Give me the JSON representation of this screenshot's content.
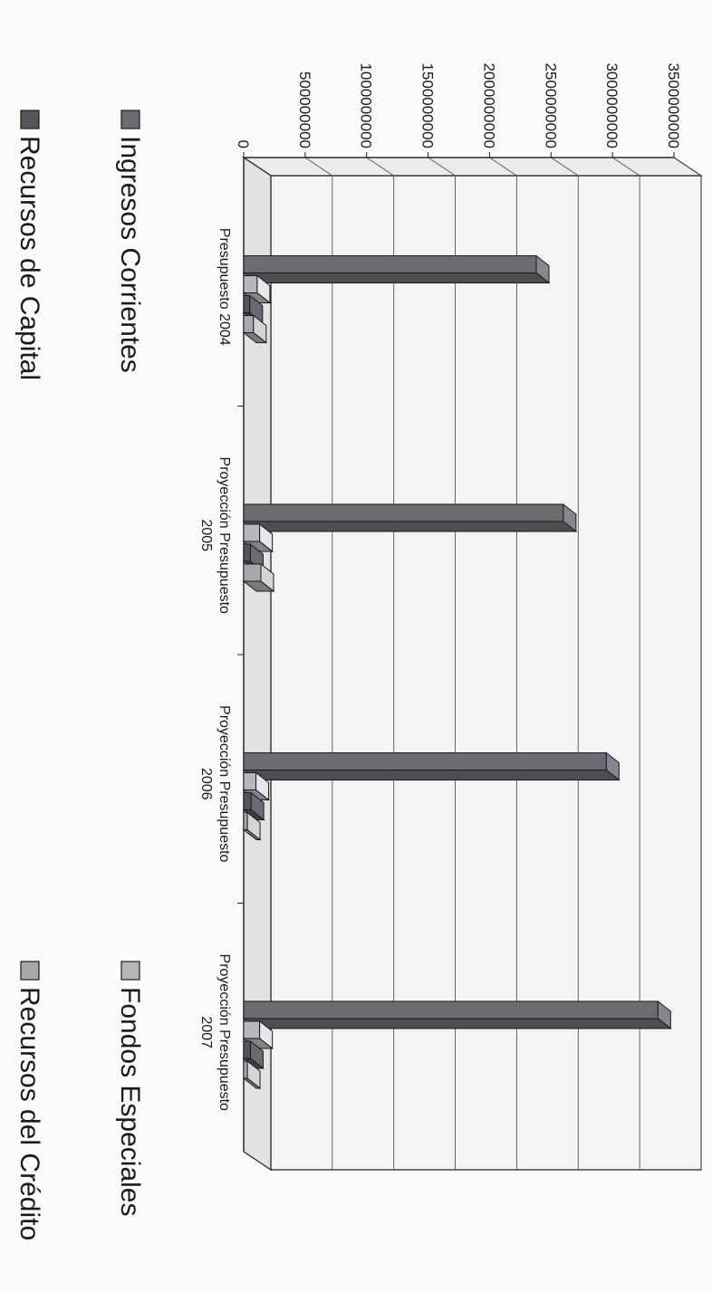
{
  "chart_data": {
    "type": "bar",
    "categories": [
      [
        "Presupuesto 2004"
      ],
      [
        "Proyección Presupuesto",
        "2005"
      ],
      [
        "Proyección Presupuesto",
        "2006"
      ],
      [
        "Proyección Presupuesto",
        "2007"
      ]
    ],
    "series": [
      {
        "name": "Ingresos Corrientes",
        "values": [
          2380000000,
          2600000000,
          2950000000,
          3370000000
        ]
      },
      {
        "name": "Fondos Especiales",
        "values": [
          110000000,
          130000000,
          100000000,
          130000000
        ]
      },
      {
        "name": "Recursos de Capital",
        "values": [
          50000000,
          55000000,
          60000000,
          55000000
        ]
      },
      {
        "name": "Recursos del Crédito",
        "values": [
          80000000,
          140000000,
          30000000,
          30000000
        ]
      }
    ],
    "yticks": [
      "0",
      "500000000",
      "1000000000",
      "1500000000",
      "2000000000",
      "2500000000",
      "3000000000",
      "3500000000"
    ],
    "ylim": [
      0,
      3500000000
    ],
    "grid": true,
    "legend_position": "bottom",
    "colors": {
      "Ingresos Corrientes": "#6b6b72",
      "Fondos Especiales": "#b8b8bc",
      "Recursos de Capital": "#55555c",
      "Recursos del Crédito": "#a9a9ad"
    }
  }
}
